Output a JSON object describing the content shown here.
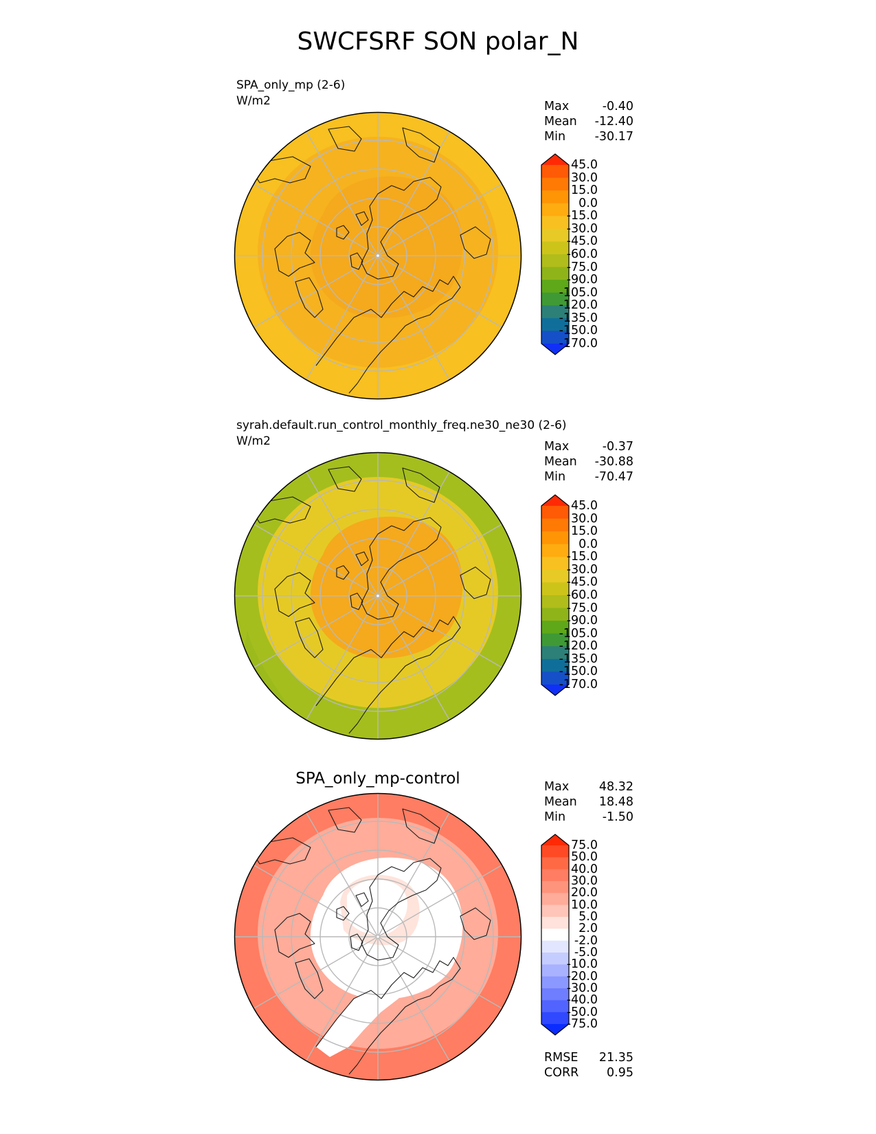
{
  "figure": {
    "title": "SWCFSRF SON polar_N"
  },
  "chart_data": [
    {
      "type": "heatmap",
      "projection": "north polar stereographic",
      "title": "SPA_only_mp (2-6)",
      "units": "W/m2",
      "stats": {
        "max_label": "Max",
        "max": "-0.40",
        "mean_label": "Mean",
        "mean": "-12.40",
        "min_label": "Min",
        "min": "-30.17"
      },
      "colorbar": {
        "levels": [
          "45.0",
          "30.0",
          "15.0",
          "0.0",
          "-15.0",
          "-30.0",
          "-45.0",
          "-60.0",
          "-75.0",
          "-90.0",
          "-105.0",
          "-120.0",
          "-135.0",
          "-150.0",
          "-170.0"
        ],
        "colors": [
          "#ff2a05",
          "#ff5a05",
          "#ff7a05",
          "#ff9505",
          "#ffac10",
          "#f8c020",
          "#e7ca25",
          "#cdc41a",
          "#b0bd1a",
          "#8fb41a",
          "#5ea81a",
          "#3f9a35",
          "#2d8078",
          "#106f9a",
          "#1550c8",
          "#1030f8"
        ]
      },
      "field": {
        "outer_ring": "#f8c020",
        "middle_ring": "#f6b21f",
        "inner_region": "#f5a91c",
        "note": "Mostly -15 to -30 W/m2 bands; arctic interior near -15"
      }
    },
    {
      "type": "heatmap",
      "projection": "north polar stereographic",
      "title": "syrah.default.run_control_monthly_freq.ne30_ne30 (2-6)",
      "units": "W/m2",
      "stats": {
        "max_label": "Max",
        "max": "-0.37",
        "mean_label": "Mean",
        "mean": "-30.88",
        "min_label": "Min",
        "min": "-70.47"
      },
      "colorbar": {
        "levels": [
          "45.0",
          "30.0",
          "15.0",
          "0.0",
          "-15.0",
          "-30.0",
          "-45.0",
          "-60.0",
          "-75.0",
          "-90.0",
          "-105.0",
          "-120.0",
          "-135.0",
          "-150.0",
          "-170.0"
        ],
        "colors": [
          "#ff2a05",
          "#ff5a05",
          "#ff7a05",
          "#ff9505",
          "#ffac10",
          "#f8c020",
          "#e7ca25",
          "#cdc41a",
          "#b0bd1a",
          "#8fb41a",
          "#5ea81a",
          "#3f9a35",
          "#2d8078",
          "#106f9a",
          "#1550c8",
          "#1030f8"
        ]
      },
      "field": {
        "outer_ring": "#a4be1e",
        "middle_ring": "#e5ca25",
        "inner_region": "#f5a91c",
        "note": "Outer mid-latitudes near -60 to -75 W/m2; arctic interior near -15"
      }
    },
    {
      "type": "heatmap",
      "projection": "north polar stereographic",
      "title": "SPA_only_mp-control",
      "units": "W/m2",
      "stats": {
        "max_label": "Max",
        "max": "48.32",
        "mean_label": "Mean",
        "mean": "18.48",
        "min_label": "Min",
        "min": "-1.50"
      },
      "extra_stats": {
        "rmse_label": "RMSE",
        "rmse": "21.35",
        "corr_label": "CORR",
        "corr": "0.95"
      },
      "colorbar": {
        "levels": [
          "75.0",
          "50.0",
          "40.0",
          "30.0",
          "20.0",
          "10.0",
          "5.0",
          "2.0",
          "-2.0",
          "-5.0",
          "-10.0",
          "-20.0",
          "-30.0",
          "-40.0",
          "-50.0",
          "-75.0"
        ],
        "colors": [
          "#ff2a05",
          "#ff4a25",
          "#ff6a45",
          "#ff7d62",
          "#ff947c",
          "#ffac9a",
          "#ffc5b8",
          "#ffe2db",
          "#ffffff",
          "#e2e6ff",
          "#c5ccff",
          "#a9b2ff",
          "#8b98ff",
          "#6f7eff",
          "#5264ff",
          "#3048ff",
          "#0a2cff"
        ]
      },
      "field": {
        "outer_ring": "#ff7d62",
        "middle_ring": "#ffac9a",
        "inner_region": "#ffffff",
        "note": "Differences mostly +20 to +40 W/m2; near zero over central Arctic and Greenland"
      }
    }
  ]
}
